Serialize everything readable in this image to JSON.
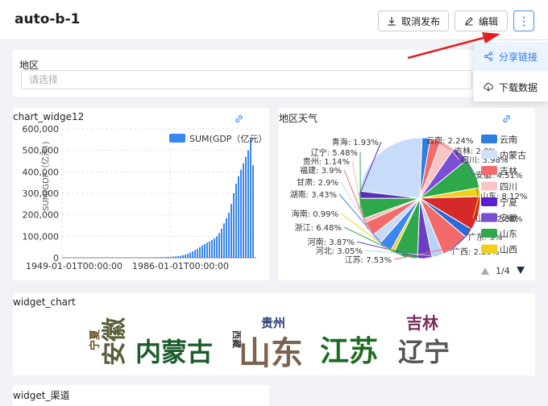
{
  "header": {
    "title": "auto-b-1",
    "cancel_publish_label": "取消发布",
    "edit_label": "编辑",
    "more_label": "⋮"
  },
  "dropdown": {
    "share_label": "分享链接",
    "download_label": "下载数据"
  },
  "filter": {
    "label": "地区",
    "placeholder": "请选择"
  },
  "colors": {
    "accent": "#2f7de1",
    "arrow": "#e02020",
    "bar": "#3b86f0"
  },
  "widgets": {
    "bar_title": "widge12",
    "bar_title_prefix": "chart_",
    "pie_title": "地区天气",
    "word_title": "widget_chart",
    "channel_title": "widget_渠道"
  },
  "chart_data": [
    {
      "type": "bar",
      "legend": "SUM(GDP（亿元）)",
      "legend_display": "SUM(GDP（亿元）",
      "ylabel": "SUM(GDP（亿元）)",
      "ylim": [
        0,
        600000
      ],
      "yticks": [
        "0",
        "100,000",
        "200,000",
        "300,000",
        "400,000",
        "500,000",
        "600,000"
      ],
      "xticks": [
        "1949-01-01T00:00:00",
        "1986-01-01T00:00:00"
      ],
      "values": [
        500,
        520,
        540,
        560,
        580,
        600,
        620,
        640,
        660,
        680,
        700,
        720,
        740,
        760,
        780,
        800,
        820,
        840,
        860,
        880,
        900,
        930,
        960,
        990,
        1020,
        1050,
        1080,
        1110,
        1150,
        1200,
        1250,
        1300,
        1350,
        1450,
        1550,
        1700,
        1900,
        2100,
        2400,
        2700,
        3000,
        3400,
        3800,
        4200,
        4800,
        5500,
        6500,
        7800,
        9500,
        12000,
        15000,
        19000,
        24000,
        30000,
        36000,
        42000,
        50000,
        58000,
        64000,
        70000,
        76000,
        82000,
        90000,
        100000,
        115000,
        135000,
        160000,
        185000,
        210000,
        250000,
        300000,
        345000,
        380000,
        410000,
        440000,
        470000,
        500000,
        560000,
        430000
      ]
    },
    {
      "type": "pie",
      "legend_items": [
        "云南",
        "内蒙古",
        "吉林",
        "四川",
        "宁夏",
        "安徽",
        "山东",
        "山西"
      ],
      "legend_page": "1/4",
      "slices": [
        {
          "name": "云南",
          "value": 2.24,
          "label": "云南: 2.24%",
          "color": "#2f7de1"
        },
        {
          "name": "吉林",
          "value": 2.8,
          "label": "吉林: 2.8%",
          "color": "#f26a6a"
        },
        {
          "name": "四川",
          "value": 3.98,
          "label": "四川: 3.98%",
          "color": "#f9c4c4"
        },
        {
          "name": "安徽",
          "value": 4.51,
          "label": "安徽: 4.51%",
          "color": "#7a4fd4"
        },
        {
          "name": "山东",
          "value": 8.12,
          "label": "山东: 8.12%",
          "color": "#2ea84a"
        },
        {
          "name": "山西",
          "value": 2.38,
          "label": "山西: 2.38%",
          "color": "#f2cf1d"
        },
        {
          "name": "广东",
          "value": 9,
          "label": "广东: 9%",
          "color": "#d62a2a"
        },
        {
          "name": "广西",
          "value": 2.59,
          "label": "广西: 2.59%",
          "color": "#2b6ad6"
        },
        {
          "name": "江苏",
          "value": 7.53,
          "label": "江苏: 7.53%",
          "color": "#f26a6a"
        },
        {
          "name": "河北",
          "value": 3.05,
          "label": "河北: 3.05%",
          "color": "#b7d3f7"
        },
        {
          "name": "河南",
          "value": 3.87,
          "label": "河南: 3.87%",
          "color": "#6a3fc4"
        },
        {
          "name": "浙江",
          "value": 6.48,
          "label": "浙江: 6.48%",
          "color": "#2ea84a"
        },
        {
          "name": "海南",
          "value": 0.99,
          "label": "海南: 0.99%",
          "color": "#f2cf1d"
        },
        {
          "name": "湖南",
          "value": 3.43,
          "label": "湖南: 3.43%",
          "color": "#3b86f0"
        },
        {
          "name": "甘肃",
          "value": 2.9,
          "label": "甘肃: 2.9%",
          "color": "#c9daf5"
        },
        {
          "name": "福建",
          "value": 3.9,
          "label": "福建: 3.9%",
          "color": "#f26a6a"
        },
        {
          "name": "贵州",
          "value": 1.14,
          "label": "贵州: 1.14%",
          "color": "#f7b8b8"
        },
        {
          "name": "辽宁",
          "value": 5.48,
          "label": "辽宁: 5.48%",
          "color": "#2ea84a"
        },
        {
          "name": "青海",
          "value": 1.93,
          "label": "青海: 1.93%",
          "color": "#5a2fb8"
        },
        {
          "name": "其他",
          "value": 23.68,
          "label": "",
          "color": "#c7dcf8"
        }
      ]
    },
    {
      "type": "wordcloud",
      "words": [
        {
          "text": "宁夏",
          "color": "#6b4c1e"
        },
        {
          "text": "安徽",
          "color": "#5a5e3a"
        },
        {
          "text": "内蒙古",
          "color": "#1c5c2c"
        },
        {
          "text": "西藏",
          "color": "#333333"
        },
        {
          "text": "山东",
          "color": "#7a6450"
        },
        {
          "text": "贵州",
          "color": "#2c3d7a"
        },
        {
          "text": "江苏",
          "color": "#1f6b24"
        },
        {
          "text": "吉林",
          "color": "#7a2a5c"
        },
        {
          "text": "辽宁",
          "color": "#555555"
        }
      ]
    }
  ]
}
